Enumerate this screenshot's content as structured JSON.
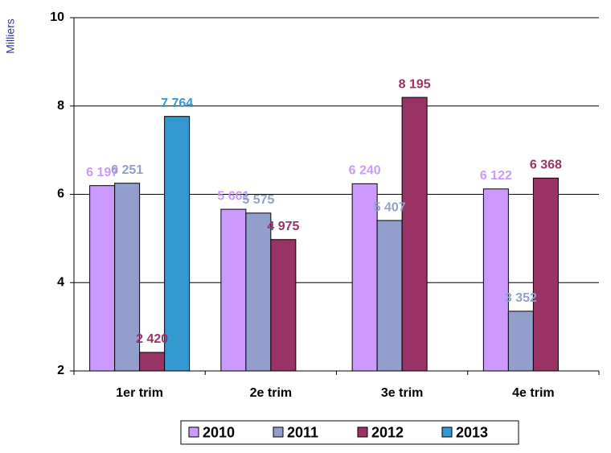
{
  "chart_data": {
    "type": "bar",
    "y_label": "Milliers",
    "categories": [
      "1er trim",
      "2e trim",
      "3e trim",
      "4e trim"
    ],
    "series": [
      {
        "name": "2010",
        "color": "#cc99ff",
        "values": [
          6.197,
          5.661,
          6.24,
          6.122
        ],
        "value_labels": [
          "6 197",
          "5 661",
          "6 240",
          "6 122"
        ]
      },
      {
        "name": "2011",
        "color": "#929fcd",
        "values": [
          6.251,
          5.575,
          5.407,
          3.352
        ],
        "value_labels": [
          "6 251",
          "5 575",
          "5 407",
          "3 352"
        ]
      },
      {
        "name": "2012",
        "color": "#993366",
        "values": [
          2.42,
          4.975,
          8.195,
          6.368
        ],
        "value_labels": [
          "2 420",
          "4 975",
          "8 195",
          "6 368"
        ]
      },
      {
        "name": "2013",
        "color": "#3399d0",
        "values": [
          7.764,
          null,
          null,
          null
        ],
        "value_labels": [
          "7 764",
          null,
          null,
          null
        ]
      }
    ],
    "ylim": [
      2,
      10
    ],
    "yticks": [
      2,
      4,
      6,
      8,
      10
    ],
    "grid": true,
    "legend": "bottom"
  }
}
